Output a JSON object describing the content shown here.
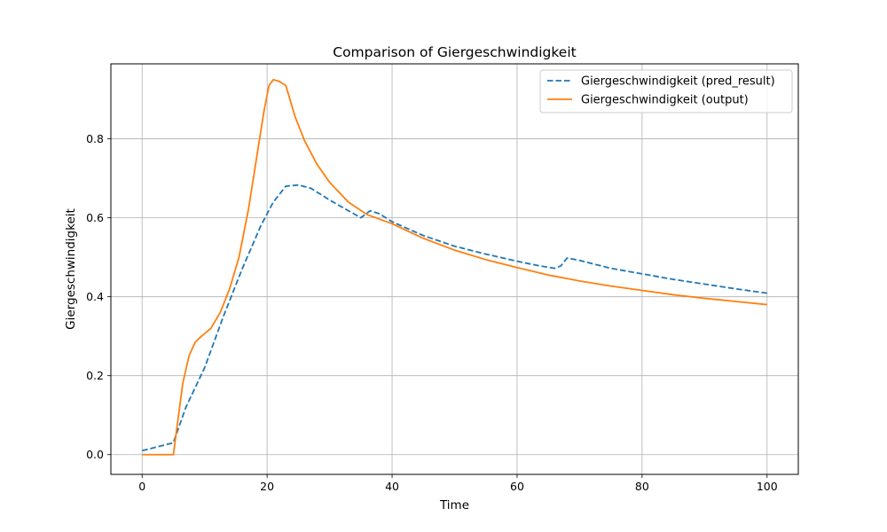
{
  "chart_data": {
    "type": "line",
    "title": "Comparison of Giergeschwindigkeit",
    "xlabel": "Time",
    "ylabel": "Giergeschwindigkeit",
    "xlim": [
      -5,
      105
    ],
    "ylim": [
      -0.05,
      0.99
    ],
    "xticks": [
      0,
      20,
      40,
      60,
      80,
      100
    ],
    "yticks": [
      0.0,
      0.2,
      0.4,
      0.6,
      0.8
    ],
    "xtick_labels": [
      "0",
      "20",
      "40",
      "60",
      "80",
      "100"
    ],
    "ytick_labels": [
      "0.0",
      "0.2",
      "0.4",
      "0.6",
      "0.8"
    ],
    "grid": true,
    "legend_position": "top-right",
    "series": [
      {
        "name": "Giergeschwindigkeit (pred_result)",
        "color": "#1f77b4",
        "style": "dashed",
        "x": [
          0,
          5,
          7,
          10,
          13,
          16,
          19,
          21,
          23,
          25,
          27,
          30,
          33,
          35,
          36.5,
          38,
          40,
          45,
          50,
          55,
          60,
          63,
          66,
          67,
          68,
          70,
          75,
          80,
          85,
          90,
          95,
          100
        ],
        "y": [
          0.01,
          0.03,
          0.12,
          0.22,
          0.35,
          0.47,
          0.58,
          0.64,
          0.68,
          0.683,
          0.675,
          0.645,
          0.618,
          0.6,
          0.618,
          0.61,
          0.59,
          0.555,
          0.528,
          0.508,
          0.49,
          0.48,
          0.472,
          0.478,
          0.498,
          0.492,
          0.472,
          0.458,
          0.444,
          0.432,
          0.42,
          0.409
        ]
      },
      {
        "name": "Giergeschwindigkeit (output)",
        "color": "#ff7f0e",
        "style": "solid",
        "x": [
          0,
          5,
          5.5,
          6.5,
          7.5,
          8.5,
          9.5,
          11,
          12.5,
          14,
          15.5,
          17,
          18.5,
          19.5,
          20.3,
          21,
          22,
          23,
          24.5,
          26,
          28,
          30,
          33,
          36,
          40,
          45,
          50,
          55,
          60,
          65,
          70,
          75,
          80,
          85,
          90,
          95,
          100
        ],
        "y": [
          0.0,
          0.0,
          0.06,
          0.18,
          0.25,
          0.285,
          0.3,
          0.32,
          0.36,
          0.42,
          0.5,
          0.62,
          0.77,
          0.87,
          0.935,
          0.95,
          0.945,
          0.935,
          0.855,
          0.795,
          0.735,
          0.69,
          0.64,
          0.608,
          0.585,
          0.548,
          0.518,
          0.494,
          0.474,
          0.455,
          0.44,
          0.427,
          0.416,
          0.405,
          0.396,
          0.388,
          0.38
        ]
      }
    ]
  }
}
